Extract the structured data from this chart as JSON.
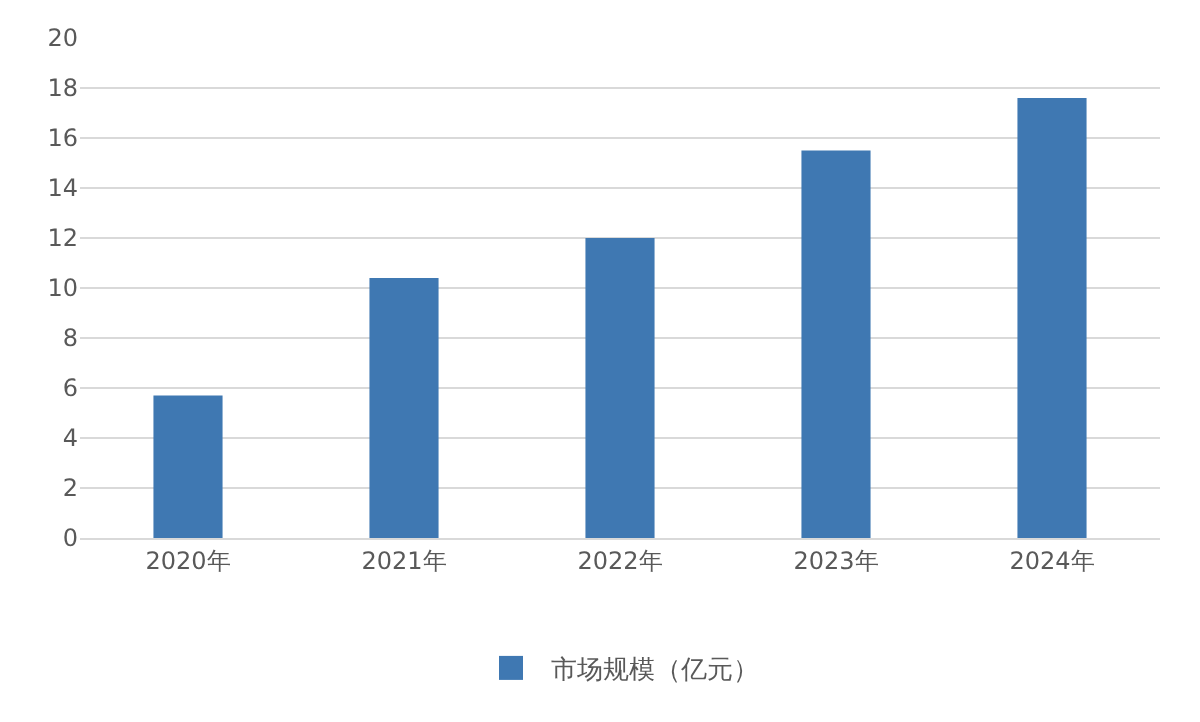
{
  "chart_data": {
    "type": "bar",
    "categories": [
      "2020年",
      "2021年",
      "2022年",
      "2023年",
      "2024年"
    ],
    "series": [
      {
        "name": "市场规模（亿元）",
        "color": "#3f78b2",
        "values": [
          5.7,
          10.4,
          12.0,
          15.5,
          17.6
        ]
      }
    ],
    "ylim": [
      0,
      20
    ],
    "yticks": [
      0,
      2,
      4,
      6,
      8,
      10,
      12,
      14,
      16,
      18,
      20
    ],
    "grid": "y",
    "legend": "bottom"
  }
}
